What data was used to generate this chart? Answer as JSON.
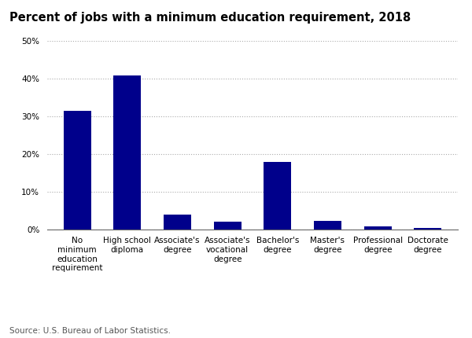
{
  "categories": [
    "No\nminimum\neducation\nrequirement",
    "High school\ndiploma",
    "Associate's\ndegree",
    "Associate's\nvocational\ndegree",
    "Bachelor's\ndegree",
    "Master's\ndegree",
    "Professional\ndegree",
    "Doctorate\ndegree"
  ],
  "values": [
    31.5,
    40.7,
    4.0,
    2.2,
    18.0,
    2.4,
    1.0,
    0.6
  ],
  "bar_color": "#00008B",
  "title": "Percent of jobs with a minimum education requirement, 2018",
  "ylim": [
    0,
    50
  ],
  "yticks": [
    0,
    10,
    20,
    30,
    40,
    50
  ],
  "ytick_labels": [
    "0%",
    "10%",
    "20%",
    "30%",
    "40%",
    "50%"
  ],
  "source_text": "Source: U.S. Bureau of Labor Statistics.",
  "background_color": "#ffffff",
  "grid_color": "#aaaaaa",
  "title_fontsize": 10.5,
  "tick_fontsize": 7.5,
  "source_fontsize": 7.5
}
